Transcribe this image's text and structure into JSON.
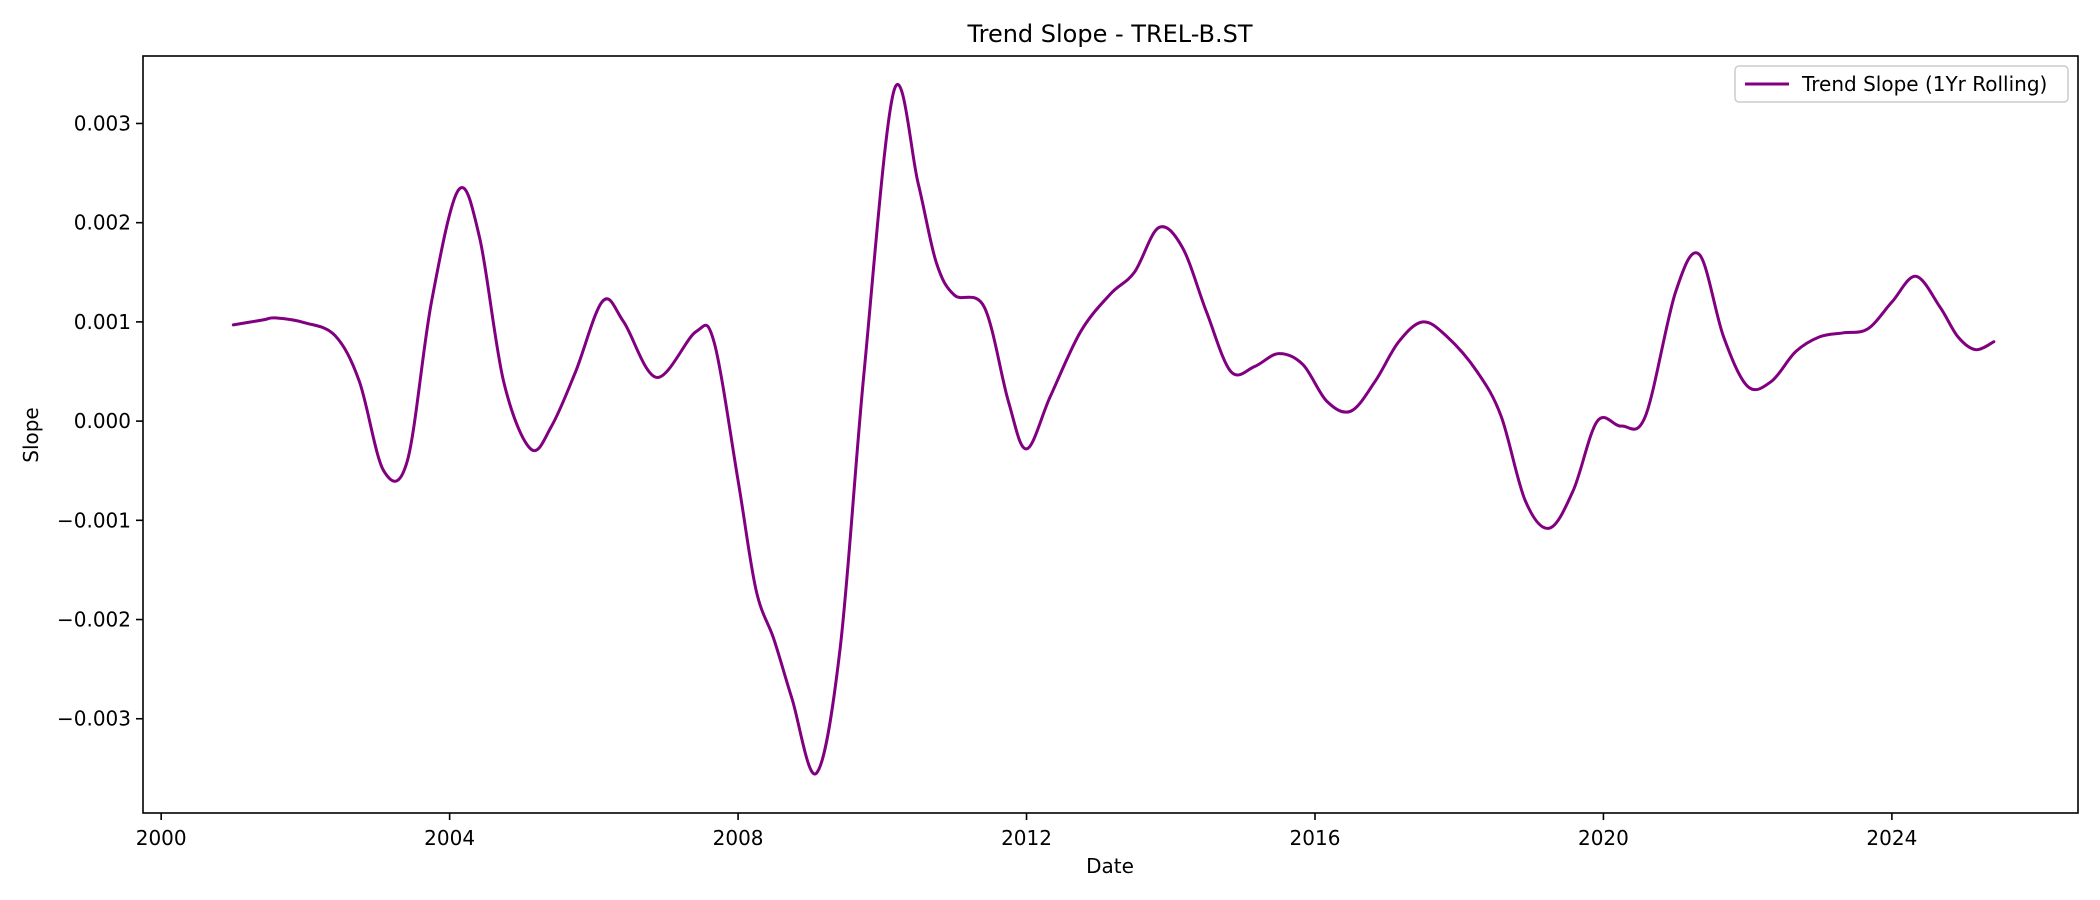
{
  "chart_data": {
    "type": "line",
    "title": "Trend Slope - TREL-B.ST",
    "xlabel": "Date",
    "ylabel": "Slope",
    "xlim": [
      "1999-10-01",
      "2026-08-01"
    ],
    "ylim": [
      -0.00395,
      0.00368
    ],
    "x_ticks": [
      2000,
      2004,
      2008,
      2012,
      2016,
      2020,
      2024
    ],
    "y_ticks": [
      -0.003,
      -0.002,
      -0.001,
      0.0,
      0.001,
      0.002,
      0.003
    ],
    "y_tick_labels": [
      "−0.003",
      "−0.002",
      "−0.001",
      "0.000",
      "0.001",
      "0.002",
      "0.003"
    ],
    "grid": false,
    "legend_position": "top-right",
    "colors": {
      "series": "#800080"
    },
    "series": [
      {
        "name": "Trend Slope (1Yr Rolling)",
        "x": [
          "2001-01-01",
          "2001-06-01",
          "2001-08-01",
          "2002-01-01",
          "2002-06-01",
          "2002-10-01",
          "2003-02-01",
          "2003-06-01",
          "2003-10-01",
          "2004-02-15",
          "2004-06-01",
          "2004-10-01",
          "2005-02-15",
          "2005-06-01",
          "2005-10-01",
          "2006-02-15",
          "2006-06-01",
          "2006-11-15",
          "2007-06-01",
          "2007-09-01",
          "2008-01-01",
          "2008-04-01",
          "2008-07-01",
          "2008-10-01",
          "2009-02-01",
          "2009-06-01",
          "2009-10-01",
          "2010-03-01",
          "2010-07-01",
          "2010-10-01",
          "2011-01-01",
          "2011-06-01",
          "2011-10-01",
          "2012-01-01",
          "2012-05-01",
          "2012-10-01",
          "2013-03-01",
          "2013-07-01",
          "2013-11-01",
          "2014-03-01",
          "2014-07-01",
          "2014-11-01",
          "2015-03-01",
          "2015-07-01",
          "2015-11-01",
          "2016-03-01",
          "2016-07-01",
          "2016-11-01",
          "2017-03-01",
          "2017-07-01",
          "2017-11-01",
          "2018-04-01",
          "2018-08-01",
          "2018-12-01",
          "2019-04-01",
          "2019-08-01",
          "2019-12-01",
          "2020-04-01",
          "2020-08-01",
          "2021-01-01",
          "2021-05-01",
          "2021-09-01",
          "2022-01-01",
          "2022-05-01",
          "2022-09-01",
          "2023-01-01",
          "2023-05-01",
          "2023-09-01",
          "2024-01-01",
          "2024-05-01",
          "2024-09-01",
          "2024-12-01",
          "2025-03-01",
          "2025-06-01"
        ],
        "values": [
          0.00097,
          0.00102,
          0.00104,
          0.00099,
          0.00086,
          0.0004,
          -0.0005,
          -0.0004,
          0.0012,
          0.00233,
          0.00185,
          0.0004,
          -0.00028,
          -5e-05,
          0.0005,
          0.00121,
          0.001,
          0.00044,
          0.0009,
          0.0008,
          -0.0006,
          -0.0017,
          -0.0022,
          -0.0028,
          -0.00355,
          -0.0023,
          0.0005,
          0.00333,
          0.0024,
          0.0016,
          0.00127,
          0.00115,
          0.0002,
          -0.00028,
          0.00025,
          0.0009,
          0.00128,
          0.0015,
          0.00195,
          0.00175,
          0.0011,
          0.0005,
          0.00055,
          0.00068,
          0.00057,
          0.0002,
          0.0001,
          0.0004,
          0.0008,
          0.001,
          0.00085,
          0.0005,
          5e-05,
          -0.0008,
          -0.00108,
          -0.0007,
          0.0,
          -5e-05,
          5e-05,
          0.0013,
          0.00168,
          0.00085,
          0.00035,
          0.0004,
          0.0007,
          0.00085,
          0.00089,
          0.00093,
          0.0012,
          0.00146,
          0.00115,
          0.00085,
          0.00072,
          0.0008
        ]
      }
    ]
  }
}
